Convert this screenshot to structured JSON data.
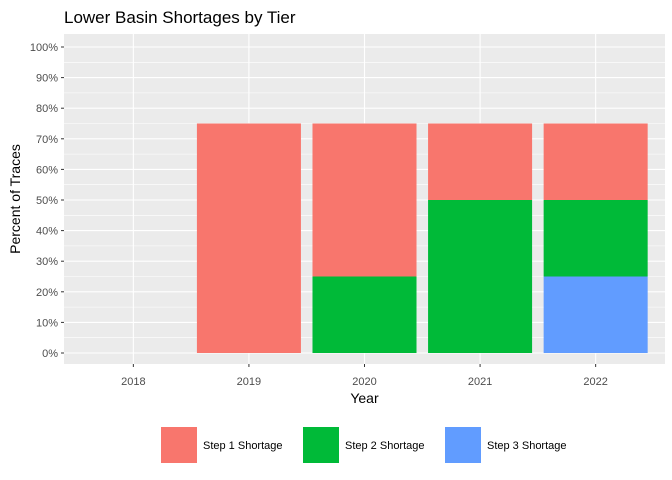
{
  "chart_data": {
    "type": "bar",
    "stacked": true,
    "title": "Lower Basin Shortages by Tier",
    "xlabel": "Year",
    "ylabel": "Percent of Traces",
    "categories": [
      "2018",
      "2019",
      "2020",
      "2021",
      "2022"
    ],
    "ylim": [
      0,
      100
    ],
    "yticks": [
      "0%",
      "10%",
      "20%",
      "30%",
      "40%",
      "50%",
      "60%",
      "70%",
      "80%",
      "90%",
      "100%"
    ],
    "series": [
      {
        "name": "Step 3 Shortage",
        "color": "#619CFF",
        "values": [
          0,
          0,
          0,
          0,
          25
        ]
      },
      {
        "name": "Step 2 Shortage",
        "color": "#00BA38",
        "values": [
          0,
          0,
          25,
          50,
          25
        ]
      },
      {
        "name": "Step 1 Shortage",
        "color": "#F8766D",
        "values": [
          0,
          75,
          50,
          25,
          25
        ]
      }
    ],
    "legend_order": [
      "Step 1 Shortage",
      "Step 2 Shortage",
      "Step 3 Shortage"
    ],
    "legend_position": "bottom",
    "grid": true,
    "panel_background": "#EBEBEB"
  }
}
